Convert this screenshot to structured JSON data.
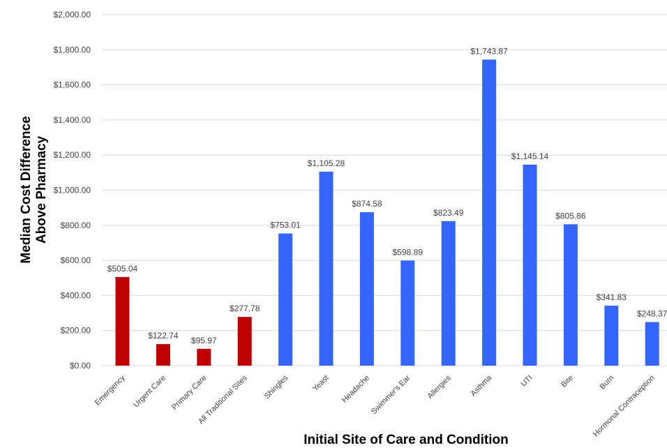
{
  "chart_data": {
    "type": "bar",
    "xlabel": "Initial Site of Care and Condition",
    "ylabel_lines": [
      "Median Cost Difference",
      "Above Pharmacy"
    ],
    "ylim": [
      0,
      2000
    ],
    "yticks": [
      "$0.00",
      "$200.00",
      "$400.00",
      "$600.00",
      "$800.00",
      "$1,000.00",
      "$1,200.00",
      "$1,400.00",
      "$1,600.00",
      "$1,800.00",
      "$2,000.00"
    ],
    "ytick_values": [
      0,
      200,
      400,
      600,
      800,
      1000,
      1200,
      1400,
      1600,
      1800,
      2000
    ],
    "grid": true,
    "categories": [
      "Emergency",
      "Urgent Care",
      "Primary Care",
      "All Traditional Sites",
      "Shingles",
      "Yeast",
      "Headache",
      "Swimmer's Ear",
      "Allergies",
      "Asthma",
      "UTI",
      "Bite",
      "Burn",
      "Hormonal Contraception"
    ],
    "values": [
      505.04,
      122.74,
      95.97,
      277.78,
      753.01,
      1105.28,
      874.58,
      598.89,
      823.49,
      1743.87,
      1145.14,
      805.86,
      341.83,
      248.37
    ],
    "data_labels": [
      "$505.04",
      "$122.74",
      "$95.97",
      "$277.78",
      "$753.01",
      "$1,105.28",
      "$874.58",
      "$598.89",
      "$823.49",
      "$1,743.87",
      "$1,145.14",
      "$805.86",
      "$341.83",
      "$248.37"
    ],
    "bar_colors": [
      "#c00000",
      "#c00000",
      "#c00000",
      "#c00000",
      "#3366ff",
      "#3366ff",
      "#3366ff",
      "#3366ff",
      "#3366ff",
      "#3366ff",
      "#3366ff",
      "#3366ff",
      "#3366ff",
      "#3366ff"
    ],
    "colors": {
      "traditional": "#c00000",
      "condition": "#3366ff",
      "grid": "#d9d9d9"
    }
  }
}
